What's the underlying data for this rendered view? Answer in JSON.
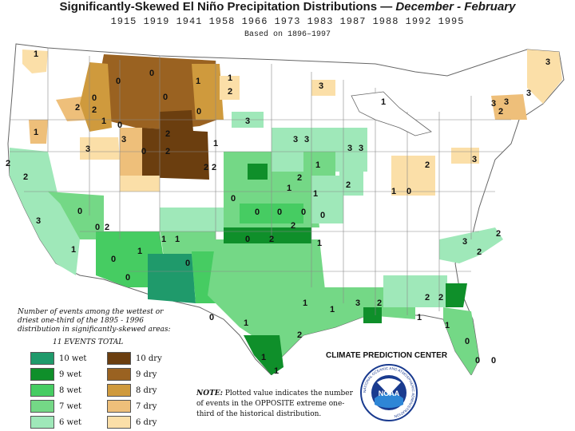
{
  "header": {
    "title_main": "Significantly-Skewed El Niño Precipitation Distributions —",
    "title_season": "December - February",
    "years": "1915 1919 1941 1958 1966 1973 1983 1987 1988 1992 1995",
    "based": "Based on 1896–1997"
  },
  "legend": {
    "caption": "Number of events among the wettest or driest one-third of the 1895 - 1996 distribution in significantly-skewed areas:",
    "total": "11 EVENTS TOTAL",
    "wet": [
      {
        "label": "10 wet",
        "color": "#1f9a6b"
      },
      {
        "label": "9 wet",
        "color": "#0f8f2a"
      },
      {
        "label": "8 wet",
        "color": "#46cc62"
      },
      {
        "label": "7 wet",
        "color": "#74d886"
      },
      {
        "label": "6 wet",
        "color": "#9fe8b9"
      }
    ],
    "dry": [
      {
        "label": "10 dry",
        "color": "#6b3e0f"
      },
      {
        "label": "9 dry",
        "color": "#9a6221"
      },
      {
        "label": "8 dry",
        "color": "#cf9a3d"
      },
      {
        "label": "7 dry",
        "color": "#eebf7a"
      },
      {
        "label": "6 dry",
        "color": "#fbdfa8"
      }
    ]
  },
  "note": {
    "prefix": "NOTE:",
    "text": "Plotted value indicates the number of events in the OPPOSITE extreme one-third of the historical distribution."
  },
  "credit": "CLIMATE PREDICTION CENTER",
  "logo": {
    "text": "NOAA",
    "ring_text": "NATIONAL OCEANIC AND ATMOSPHERIC ADMINISTRATION"
  },
  "map_labels": [
    {
      "id": "wa1",
      "text": "1"
    },
    {
      "id": "wa2",
      "text": "2"
    },
    {
      "id": "mt0a",
      "text": "0"
    },
    {
      "id": "mt0b",
      "text": "0"
    },
    {
      "id": "mt1",
      "text": "1"
    },
    {
      "id": "nd1",
      "text": "1"
    },
    {
      "id": "nd2",
      "text": "2"
    },
    {
      "id": "mn3",
      "text": "3"
    },
    {
      "id": "or2",
      "text": "2"
    },
    {
      "id": "id0",
      "text": "0"
    },
    {
      "id": "id2",
      "text": "2"
    },
    {
      "id": "mt0c",
      "text": "0"
    },
    {
      "id": "wy1",
      "text": "1"
    },
    {
      "id": "wy0",
      "text": "0"
    },
    {
      "id": "wy2",
      "text": "2"
    },
    {
      "id": "wy0b",
      "text": "0"
    },
    {
      "id": "sd1",
      "text": "1"
    },
    {
      "id": "ne3",
      "text": "3"
    },
    {
      "id": "or1",
      "text": "1"
    },
    {
      "id": "nv3",
      "text": "3"
    },
    {
      "id": "ut3",
      "text": "3"
    },
    {
      "id": "co0",
      "text": "0"
    },
    {
      "id": "co2",
      "text": "2"
    },
    {
      "id": "co2b",
      "text": "2"
    },
    {
      "id": "ca2",
      "text": "2"
    },
    {
      "id": "ca2b",
      "text": "2"
    },
    {
      "id": "ca3",
      "text": "3"
    },
    {
      "id": "ca0",
      "text": "0"
    },
    {
      "id": "ca1",
      "text": "1"
    },
    {
      "id": "nv0",
      "text": "0"
    },
    {
      "id": "nv2",
      "text": "2"
    },
    {
      "id": "az1",
      "text": "1"
    },
    {
      "id": "az0",
      "text": "0"
    },
    {
      "id": "az1b",
      "text": "1"
    },
    {
      "id": "nm0",
      "text": "0"
    },
    {
      "id": "nm1",
      "text": "1"
    },
    {
      "id": "nm0b",
      "text": "0"
    },
    {
      "id": "tx0",
      "text": "0"
    },
    {
      "id": "tx1",
      "text": "1"
    },
    {
      "id": "tx1b",
      "text": "1"
    },
    {
      "id": "tx2",
      "text": "2"
    },
    {
      "id": "tx1c",
      "text": "1"
    },
    {
      "id": "ks0",
      "text": "0"
    },
    {
      "id": "ks0b",
      "text": "0"
    },
    {
      "id": "ks0c",
      "text": "0"
    },
    {
      "id": "ok2",
      "text": "2"
    },
    {
      "id": "ok0",
      "text": "0"
    },
    {
      "id": "ok2b",
      "text": "2"
    },
    {
      "id": "ia1",
      "text": "1"
    },
    {
      "id": "ia2",
      "text": "2"
    },
    {
      "id": "ia3",
      "text": "3"
    },
    {
      "id": "wi3",
      "text": "3"
    },
    {
      "id": "mi3",
      "text": "3"
    },
    {
      "id": "mi3b",
      "text": "3"
    },
    {
      "id": "il1",
      "text": "1"
    },
    {
      "id": "il2",
      "text": "2"
    },
    {
      "id": "ar1",
      "text": "1"
    },
    {
      "id": "la1",
      "text": "1"
    },
    {
      "id": "ms2",
      "text": "2"
    },
    {
      "id": "al3",
      "text": "3"
    },
    {
      "id": "ga2",
      "text": "2"
    },
    {
      "id": "ga1",
      "text": "1"
    },
    {
      "id": "fl1",
      "text": "1"
    },
    {
      "id": "fl0",
      "text": "0"
    },
    {
      "id": "fl0b",
      "text": "0"
    },
    {
      "id": "fl0c",
      "text": "0"
    },
    {
      "id": "fl1b",
      "text": "1"
    },
    {
      "id": "sc2",
      "text": "2"
    },
    {
      "id": "nc3",
      "text": "3"
    },
    {
      "id": "nc2",
      "text": "2"
    },
    {
      "id": "va2",
      "text": "2"
    },
    {
      "id": "oh1",
      "text": "1"
    },
    {
      "id": "oh0",
      "text": "0"
    },
    {
      "id": "oh2",
      "text": "2"
    },
    {
      "id": "pa3",
      "text": "3"
    },
    {
      "id": "ny1",
      "text": "1"
    },
    {
      "id": "me3",
      "text": "3"
    },
    {
      "id": "me3b",
      "text": "3"
    },
    {
      "id": "ne3b",
      "text": "3"
    },
    {
      "id": "nh2",
      "text": "2"
    },
    {
      "id": "ct3",
      "text": "3"
    },
    {
      "id": "mn1",
      "text": "1"
    },
    {
      "id": "ar0",
      "text": "0"
    },
    {
      "id": "mo0",
      "text": "0"
    },
    {
      "id": "mo1",
      "text": "1"
    }
  ]
}
